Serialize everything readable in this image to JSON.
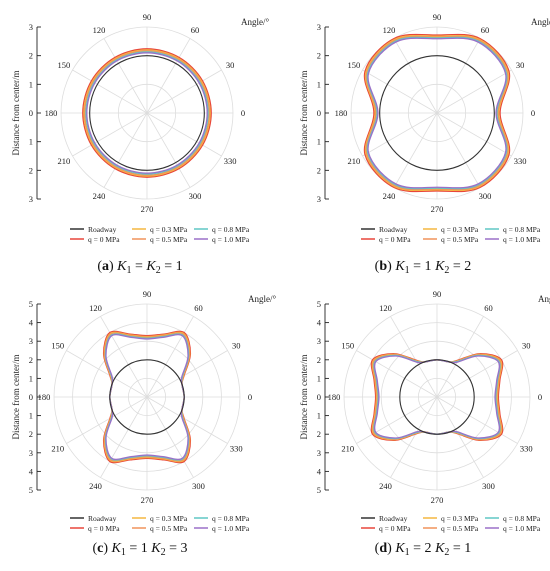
{
  "common": {
    "angle_label": "Angle/°",
    "radial_axis_label": "Distance from center/m",
    "angle_ticks": [
      "0",
      "30",
      "60",
      "90",
      "120",
      "150",
      "180",
      "210",
      "240",
      "270",
      "300",
      "330"
    ],
    "roadway_radius": 2,
    "roadway_color": "#333333",
    "legend": {
      "roadway": "Roadway",
      "q0": "q = 0 MPa",
      "q03": "q = 0.3 MPa",
      "q05": "q = 0.5 MPa",
      "q08": "q = 0.8 MPa",
      "q10": "q = 1.0 MPa"
    },
    "series_colors": {
      "q0": "#e8463a",
      "q03": "#f4b740",
      "q05": "#f0935a",
      "q08": "#5fc7c4",
      "q10": "#9a70c8"
    }
  },
  "chart_data": [
    {
      "type": "polar-line",
      "caption": {
        "letter": "a",
        "k1_value": "1",
        "k2_value": "1"
      },
      "rlim": [
        0,
        3
      ],
      "radial_ticks_upper": [
        "3",
        "2",
        "1"
      ],
      "center_tick": "0",
      "radial_ticks_lower": [
        "1",
        "2",
        "3"
      ],
      "angle_deg": [
        0,
        30,
        60,
        90,
        120,
        150,
        180,
        210,
        240,
        270,
        300,
        330
      ],
      "series": [
        {
          "key": "q0",
          "r": [
            2.24,
            2.24,
            2.24,
            2.24,
            2.24,
            2.24,
            2.24,
            2.24,
            2.24,
            2.24,
            2.24,
            2.24
          ]
        },
        {
          "key": "q03",
          "r": [
            2.2,
            2.2,
            2.2,
            2.2,
            2.2,
            2.2,
            2.2,
            2.2,
            2.2,
            2.2,
            2.2,
            2.2
          ]
        },
        {
          "key": "q05",
          "r": [
            2.17,
            2.17,
            2.17,
            2.17,
            2.17,
            2.17,
            2.17,
            2.17,
            2.17,
            2.17,
            2.17,
            2.17
          ]
        },
        {
          "key": "q08",
          "r": [
            2.13,
            2.13,
            2.13,
            2.13,
            2.13,
            2.13,
            2.13,
            2.13,
            2.13,
            2.13,
            2.13,
            2.13
          ]
        },
        {
          "key": "q10",
          "r": [
            2.1,
            2.1,
            2.1,
            2.1,
            2.1,
            2.1,
            2.1,
            2.1,
            2.1,
            2.1,
            2.1,
            2.1
          ]
        }
      ]
    },
    {
      "type": "polar-line",
      "caption": {
        "letter": "b",
        "k1_value": "1",
        "k2_value": "2"
      },
      "rlim": [
        0,
        3
      ],
      "radial_ticks_upper": [
        "3",
        "2",
        "1"
      ],
      "center_tick": "0",
      "radial_ticks_lower": [
        "1",
        "2",
        "3"
      ],
      "angle_deg": [
        0,
        30,
        60,
        90,
        120,
        150,
        180,
        210,
        240,
        270,
        300,
        330
      ],
      "series": [
        {
          "key": "q0",
          "r": [
            2.2,
            2.9,
            3.0,
            2.72,
            3.0,
            2.9,
            2.2,
            2.9,
            3.0,
            2.72,
            3.0,
            2.9
          ]
        },
        {
          "key": "q03",
          "r": [
            2.16,
            2.86,
            2.96,
            2.68,
            2.96,
            2.86,
            2.16,
            2.86,
            2.96,
            2.68,
            2.96,
            2.86
          ]
        },
        {
          "key": "q05",
          "r": [
            2.13,
            2.83,
            2.93,
            2.65,
            2.93,
            2.83,
            2.13,
            2.83,
            2.93,
            2.65,
            2.93,
            2.83
          ]
        },
        {
          "key": "q08",
          "r": [
            2.09,
            2.79,
            2.89,
            2.62,
            2.89,
            2.79,
            2.09,
            2.79,
            2.89,
            2.62,
            2.89,
            2.79
          ]
        },
        {
          "key": "q10",
          "r": [
            2.06,
            2.76,
            2.86,
            2.59,
            2.86,
            2.76,
            2.06,
            2.76,
            2.86,
            2.59,
            2.86,
            2.76
          ]
        }
      ]
    },
    {
      "type": "polar-line",
      "caption": {
        "letter": "c",
        "k1_value": "1",
        "k2_value": "3"
      },
      "rlim": [
        0,
        5
      ],
      "radial_ticks_upper": [
        "5",
        "4",
        "3",
        "2",
        "1"
      ],
      "center_tick": "0",
      "radial_ticks_lower": [
        "1",
        "2",
        "3",
        "4",
        "5"
      ],
      "angle_deg": [
        0,
        20,
        30,
        45,
        60,
        75,
        90,
        105,
        120,
        135,
        150,
        160,
        180,
        200,
        210,
        225,
        240,
        255,
        270,
        285,
        300,
        315,
        330,
        340
      ],
      "series": [
        {
          "key": "q0",
          "r": [
            2.0,
            2.0,
            2.3,
            3.3,
            4.0,
            3.5,
            3.3,
            3.5,
            4.0,
            3.3,
            2.3,
            2.0,
            2.0,
            2.0,
            2.3,
            3.3,
            4.0,
            3.5,
            3.3,
            3.5,
            4.0,
            3.3,
            2.3,
            2.0
          ]
        },
        {
          "key": "q03",
          "r": [
            2.0,
            2.0,
            2.26,
            3.25,
            3.94,
            3.45,
            3.25,
            3.45,
            3.94,
            3.25,
            2.26,
            2.0,
            2.0,
            2.0,
            2.26,
            3.25,
            3.94,
            3.45,
            3.25,
            3.45,
            3.94,
            3.25,
            2.26,
            2.0
          ]
        },
        {
          "key": "q05",
          "r": [
            2.0,
            2.0,
            2.23,
            3.21,
            3.9,
            3.41,
            3.21,
            3.41,
            3.9,
            3.21,
            2.23,
            2.0,
            2.0,
            2.0,
            2.23,
            3.21,
            3.9,
            3.41,
            3.21,
            3.41,
            3.9,
            3.21,
            2.23,
            2.0
          ]
        },
        {
          "key": "q08",
          "r": [
            2.0,
            2.0,
            2.2,
            3.16,
            3.84,
            3.36,
            3.16,
            3.36,
            3.84,
            3.16,
            2.2,
            2.0,
            2.0,
            2.0,
            2.2,
            3.16,
            3.84,
            3.36,
            3.16,
            3.36,
            3.84,
            3.16,
            2.2,
            2.0
          ]
        },
        {
          "key": "q10",
          "r": [
            2.0,
            2.0,
            2.16,
            3.12,
            3.8,
            3.32,
            3.12,
            3.32,
            3.8,
            3.12,
            2.16,
            2.0,
            2.0,
            2.0,
            2.16,
            3.12,
            3.8,
            3.32,
            3.12,
            3.32,
            3.8,
            3.12,
            2.16,
            2.0
          ]
        }
      ]
    },
    {
      "type": "polar-line",
      "caption": {
        "letter": "d",
        "k1_value": "2",
        "k2_value": "1"
      },
      "rlim": [
        0,
        5
      ],
      "radial_ticks_upper": [
        "5",
        "4",
        "3",
        "2",
        "1"
      ],
      "center_tick": "0",
      "radial_ticks_lower": [
        "1",
        "2",
        "3",
        "4",
        "5"
      ],
      "angle_deg": [
        0,
        15,
        30,
        45,
        60,
        70,
        90,
        110,
        120,
        135,
        150,
        165,
        180,
        195,
        210,
        225,
        240,
        250,
        270,
        290,
        300,
        315,
        330,
        345
      ],
      "series": [
        {
          "key": "q0",
          "r": [
            3.3,
            3.5,
            4.0,
            3.3,
            2.3,
            2.0,
            2.0,
            2.0,
            2.3,
            3.3,
            4.0,
            3.5,
            3.3,
            3.5,
            4.0,
            3.3,
            2.3,
            2.0,
            2.0,
            2.0,
            2.3,
            3.3,
            4.0,
            3.5
          ]
        },
        {
          "key": "q03",
          "r": [
            3.25,
            3.45,
            3.94,
            3.25,
            2.26,
            2.0,
            2.0,
            2.0,
            2.26,
            3.25,
            3.94,
            3.45,
            3.25,
            3.45,
            3.94,
            3.25,
            2.26,
            2.0,
            2.0,
            2.0,
            2.26,
            3.25,
            3.94,
            3.45
          ]
        },
        {
          "key": "q05",
          "r": [
            3.21,
            3.41,
            3.9,
            3.21,
            2.23,
            2.0,
            2.0,
            2.0,
            2.23,
            3.21,
            3.9,
            3.41,
            3.21,
            3.41,
            3.9,
            3.21,
            2.23,
            2.0,
            2.0,
            2.0,
            2.23,
            3.21,
            3.9,
            3.41
          ]
        },
        {
          "key": "q08",
          "r": [
            3.16,
            3.36,
            3.84,
            3.16,
            2.2,
            2.0,
            2.0,
            2.0,
            2.2,
            3.16,
            3.84,
            3.36,
            3.16,
            3.36,
            3.84,
            3.16,
            2.2,
            2.0,
            2.0,
            2.0,
            2.2,
            3.16,
            3.84,
            3.36
          ]
        },
        {
          "key": "q10",
          "r": [
            3.12,
            3.32,
            3.8,
            3.12,
            2.16,
            2.0,
            2.0,
            2.0,
            2.16,
            3.12,
            3.8,
            3.32,
            3.12,
            3.32,
            3.8,
            3.12,
            2.16,
            2.0,
            2.0,
            2.0,
            2.16,
            3.12,
            3.8,
            3.32
          ]
        }
      ]
    }
  ]
}
